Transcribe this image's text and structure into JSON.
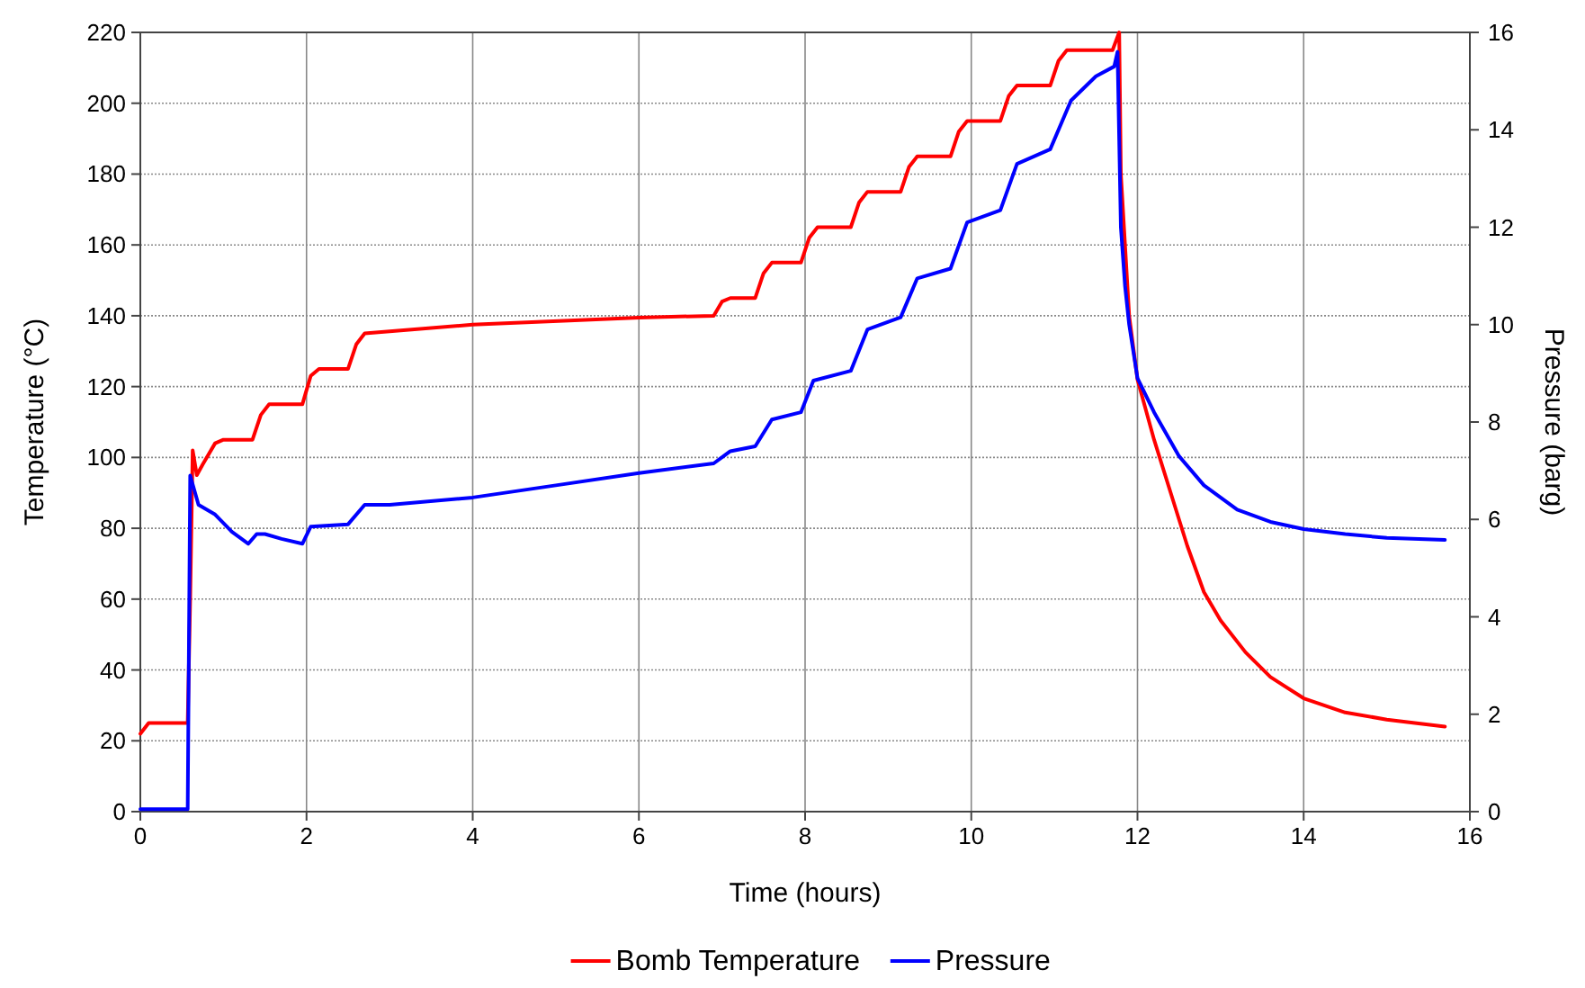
{
  "chart_data": {
    "type": "line",
    "xlabel": "Time (hours)",
    "ylabel": "Temperature (°C)",
    "y2label": "Pressure (barg)",
    "xlim": [
      0,
      16
    ],
    "xticks": [
      0,
      2,
      4,
      6,
      8,
      10,
      12,
      14,
      16
    ],
    "ylim": [
      0,
      220
    ],
    "yticks": [
      0,
      20,
      40,
      60,
      80,
      100,
      120,
      140,
      160,
      180,
      200,
      220
    ],
    "y2lim": [
      0,
      16
    ],
    "y2ticks": [
      0,
      2,
      4,
      6,
      8,
      10,
      12,
      14,
      16
    ],
    "grid": true,
    "legend": "bottom",
    "marker": "none",
    "line_style": "solid",
    "series": [
      {
        "name": "Bomb Temperature",
        "color": "#ff0000",
        "x": [
          0,
          0.1,
          0.57,
          0.6,
          0.63,
          0.68,
          0.75,
          0.9,
          1.0,
          1.35,
          1.45,
          1.55,
          1.95,
          2.05,
          2.15,
          2.5,
          2.6,
          2.7,
          4,
          6,
          6.9,
          7.0,
          7.1,
          7.4,
          7.5,
          7.6,
          7.95,
          8.05,
          8.15,
          8.55,
          8.65,
          8.75,
          9.15,
          9.25,
          9.35,
          9.75,
          9.85,
          9.95,
          10.35,
          10.45,
          10.55,
          10.95,
          11.05,
          11.15,
          11.7,
          11.78,
          11.8,
          11.85,
          11.9,
          12.0,
          12.2,
          12.4,
          12.6,
          12.8,
          13.0,
          13.3,
          13.6,
          14.0,
          14.5,
          15.0,
          15.7
        ],
        "values": [
          22,
          25,
          25,
          60,
          102,
          95,
          98,
          104,
          105,
          105,
          112,
          115,
          115,
          123,
          125,
          125,
          132,
          135,
          137.5,
          139.5,
          140,
          144,
          145,
          145,
          152,
          155,
          155,
          162,
          165,
          165,
          172,
          175,
          175,
          182,
          185,
          185,
          192,
          195,
          195,
          202,
          205,
          205,
          212,
          215,
          215,
          220,
          180,
          160,
          140,
          122,
          105,
          90,
          75,
          62,
          54,
          45,
          38,
          32,
          28,
          26,
          24
        ]
      },
      {
        "name": "Pressure",
        "color": "#0000ff",
        "axis": "y2",
        "x": [
          0,
          0.57,
          0.6,
          0.7,
          0.9,
          1.1,
          1.3,
          1.4,
          1.5,
          1.7,
          1.95,
          2.05,
          2.5,
          2.7,
          3.0,
          4,
          5,
          6,
          6.9,
          7.1,
          7.4,
          7.6,
          7.95,
          8.1,
          8.55,
          8.75,
          9.15,
          9.35,
          9.75,
          9.95,
          10.35,
          10.55,
          10.95,
          11.2,
          11.5,
          11.72,
          11.76,
          11.8,
          11.85,
          11.9,
          12.0,
          12.2,
          12.5,
          12.8,
          13.2,
          13.6,
          14.0,
          14.5,
          15.0,
          15.7
        ],
        "values": [
          0.05,
          0.05,
          6.9,
          6.3,
          6.1,
          5.75,
          5.5,
          5.7,
          5.7,
          5.6,
          5.5,
          5.85,
          5.9,
          6.3,
          6.3,
          6.45,
          6.7,
          6.95,
          7.15,
          7.4,
          7.5,
          8.05,
          8.2,
          8.85,
          9.05,
          9.9,
          10.15,
          10.95,
          11.15,
          12.1,
          12.35,
          13.3,
          13.6,
          14.6,
          15.1,
          15.3,
          15.6,
          12,
          10.8,
          10.0,
          8.9,
          8.2,
          7.3,
          6.7,
          6.2,
          5.95,
          5.8,
          5.7,
          5.62,
          5.58
        ]
      }
    ]
  }
}
